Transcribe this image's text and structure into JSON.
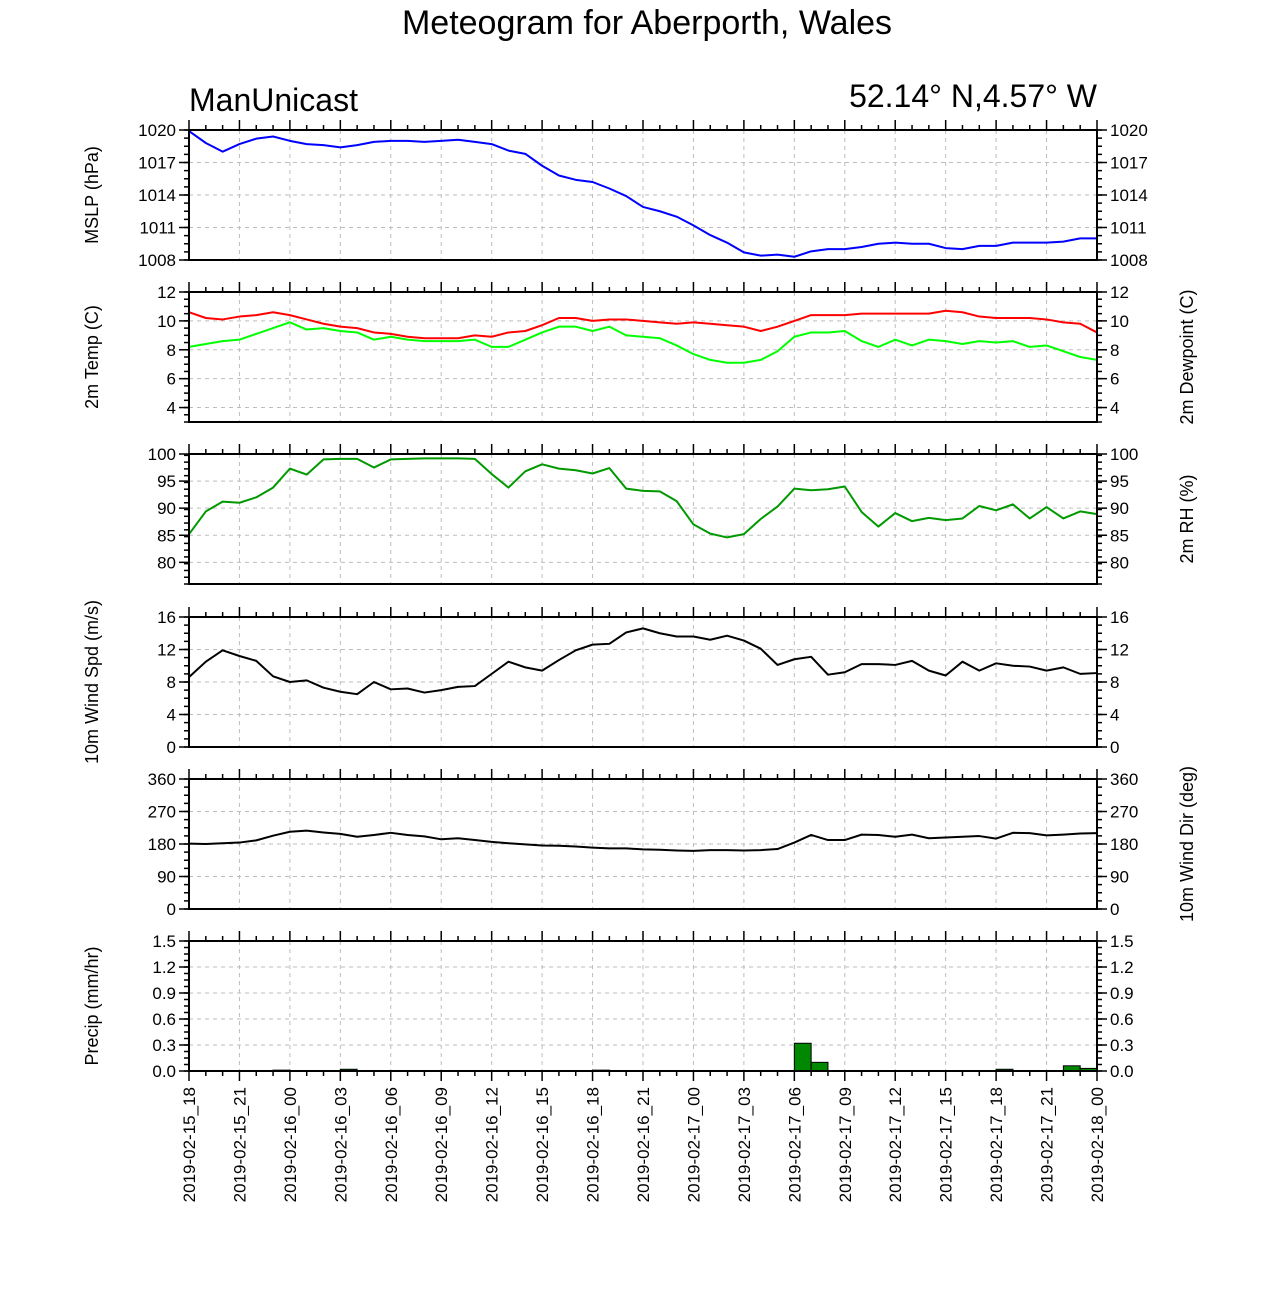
{
  "header": {
    "title": "Meteogram for Aberporth, Wales",
    "model": "ManUnicast",
    "location": "52.14° N,4.57° W"
  },
  "chart_data": {
    "type": "line",
    "time_labels": [
      "2019-02-15_18",
      "2019-02-15_21",
      "2019-02-16_00",
      "2019-02-16_03",
      "2019-02-16_06",
      "2019-02-16_09",
      "2019-02-16_12",
      "2019-02-16_15",
      "2019-02-16_18",
      "2019-02-16_21",
      "2019-02-17_00",
      "2019-02-17_03",
      "2019-02-17_06",
      "2019-02-17_09",
      "2019-02-17_12",
      "2019-02-17_15",
      "2019-02-17_18",
      "2019-02-17_21",
      "2019-02-18_00"
    ],
    "time_step_hours": 1,
    "panels": [
      {
        "id": "mslp",
        "ylabel_left": "MSLP (hPa)",
        "ylabel_right": "",
        "yticks": [
          1008,
          1011,
          1014,
          1017,
          1020
        ],
        "ylim": [
          1008,
          1020
        ],
        "series": [
          {
            "color": "#0000ff",
            "values": [
              1019.9,
              1018.8,
              1018.0,
              1018.7,
              1019.2,
              1019.4,
              1019.0,
              1018.7,
              1018.6,
              1018.4,
              1018.6,
              1018.9,
              1019.0,
              1019.0,
              1018.9,
              1019.0,
              1019.1,
              1018.9,
              1018.7,
              1018.1,
              1017.8,
              1016.7,
              1015.8,
              1015.4,
              1015.2,
              1014.6,
              1013.9,
              1012.9,
              1012.5,
              1012.0,
              1011.2,
              1010.3,
              1009.6,
              1008.7,
              1008.4,
              1008.5,
              1008.3,
              1008.8,
              1009.0,
              1009.0,
              1009.2,
              1009.5,
              1009.6,
              1009.5,
              1009.5,
              1009.1,
              1009.0,
              1009.3,
              1009.3,
              1009.6,
              1009.6,
              1009.6,
              1009.7,
              1010.0,
              1010.0
            ]
          }
        ]
      },
      {
        "id": "temp",
        "ylabel_left": "2m Temp (C)",
        "ylabel_right": "2m Dewpoint (C)",
        "yticks": [
          4,
          6,
          8,
          10,
          12
        ],
        "ylim": [
          3,
          12
        ],
        "series": [
          {
            "color": "#ff0000",
            "values": [
              10.6,
              10.2,
              10.1,
              10.3,
              10.4,
              10.6,
              10.4,
              10.1,
              9.8,
              9.6,
              9.5,
              9.2,
              9.1,
              8.9,
              8.8,
              8.8,
              8.8,
              9.0,
              8.9,
              9.2,
              9.3,
              9.7,
              10.2,
              10.2,
              10.0,
              10.1,
              10.1,
              10.0,
              9.9,
              9.8,
              9.9,
              9.8,
              9.7,
              9.6,
              9.3,
              9.6,
              10.0,
              10.4,
              10.4,
              10.4,
              10.5,
              10.5,
              10.5,
              10.5,
              10.5,
              10.7,
              10.6,
              10.3,
              10.2,
              10.2,
              10.2,
              10.1,
              9.9,
              9.8,
              9.2
            ]
          },
          {
            "color": "#00ff00",
            "values": [
              8.2,
              8.4,
              8.6,
              8.7,
              9.1,
              9.5,
              9.9,
              9.4,
              9.5,
              9.3,
              9.2,
              8.7,
              8.9,
              8.7,
              8.6,
              8.6,
              8.6,
              8.7,
              8.2,
              8.2,
              8.7,
              9.2,
              9.6,
              9.6,
              9.3,
              9.6,
              9.0,
              8.9,
              8.8,
              8.3,
              7.7,
              7.3,
              7.1,
              7.1,
              7.3,
              7.9,
              8.9,
              9.2,
              9.2,
              9.3,
              8.6,
              8.2,
              8.7,
              8.3,
              8.7,
              8.6,
              8.4,
              8.6,
              8.5,
              8.6,
              8.2,
              8.3,
              7.9,
              7.5,
              7.3
            ]
          }
        ]
      },
      {
        "id": "rh",
        "ylabel_left": "",
        "ylabel_right": "2m RH (%)",
        "yticks": [
          80,
          85,
          90,
          95,
          100
        ],
        "ylim": [
          76,
          100
        ],
        "series": [
          {
            "color": "#009900",
            "values": [
              85.2,
              89.4,
              91.2,
              91.0,
              92.0,
              93.8,
              97.3,
              96.2,
              99.0,
              99.1,
              99.1,
              97.5,
              99.0,
              99.1,
              99.2,
              99.2,
              99.2,
              99.1,
              96.3,
              93.8,
              96.8,
              98.1,
              97.3,
              97.0,
              96.4,
              97.4,
              93.6,
              93.2,
              93.1,
              91.3,
              87.0,
              85.3,
              84.6,
              85.2,
              88.0,
              90.3,
              93.6,
              93.3,
              93.5,
              94.0,
              89.3,
              86.6,
              89.1,
              87.6,
              88.2,
              87.8,
              88.1,
              90.4,
              89.6,
              90.7,
              88.1,
              90.2,
              88.1,
              89.4,
              88.9
            ]
          }
        ]
      },
      {
        "id": "wind_spd",
        "ylabel_left": "10m Wind Spd (m/s)",
        "ylabel_right": "",
        "yticks": [
          0,
          4,
          8,
          12,
          16
        ],
        "ylim": [
          0,
          16
        ],
        "series": [
          {
            "color": "#000000",
            "values": [
              8.6,
              10.5,
              11.9,
              11.2,
              10.6,
              8.7,
              8.0,
              8.2,
              7.3,
              6.8,
              6.5,
              8.0,
              7.1,
              7.2,
              6.7,
              7.0,
              7.4,
              7.5,
              9.0,
              10.5,
              9.8,
              9.4,
              10.7,
              11.9,
              12.6,
              12.7,
              14.1,
              14.6,
              14.0,
              13.6,
              13.6,
              13.2,
              13.7,
              13.1,
              12.1,
              10.1,
              10.8,
              11.1,
              8.9,
              9.2,
              10.2,
              10.2,
              10.1,
              10.6,
              9.4,
              8.8,
              10.5,
              9.4,
              10.3,
              10.0,
              9.9,
              9.4,
              9.8,
              9.0,
              9.1
            ]
          }
        ]
      },
      {
        "id": "wind_dir",
        "ylabel_left": "",
        "ylabel_right": "10m Wind Dir (deg)",
        "yticks": [
          0,
          90,
          180,
          270,
          360
        ],
        "ylim": [
          0,
          360
        ],
        "series": [
          {
            "color": "#000000",
            "values": [
              181,
              180,
              182,
              184,
              190,
              203,
              214,
              217,
              212,
              208,
              200,
              205,
              211,
              205,
              201,
              193,
              196,
              191,
              186,
              182,
              179,
              176,
              175,
              173,
              170,
              168,
              168,
              165,
              164,
              162,
              161,
              163,
              163,
              162,
              163,
              166,
              184,
              205,
              191,
              191,
              206,
              205,
              200,
              206,
              196,
              198,
              200,
              202,
              195,
              211,
              210,
              204,
              206,
              209,
              210
            ]
          }
        ]
      },
      {
        "id": "precip",
        "ylabel_left": "Precip (mm/hr)",
        "ylabel_right": "",
        "yticks": [
          "0.0",
          "0.3",
          "0.6",
          "0.9",
          "1.2",
          "1.5"
        ],
        "ylim": [
          0,
          1.5
        ],
        "bar_color": "#008800",
        "bars": [
          {
            "x": 3,
            "value": 0.005
          },
          {
            "x": 5,
            "value": 0.01
          },
          {
            "x": 9,
            "value": 0.02
          },
          {
            "x": 15,
            "value": 0.005
          },
          {
            "x": 24,
            "value": 0.01
          },
          {
            "x": 36,
            "value": 0.32
          },
          {
            "x": 37,
            "value": 0.1
          },
          {
            "x": 44,
            "value": 0.005
          },
          {
            "x": 48,
            "value": 0.02
          },
          {
            "x": 52,
            "value": 0.06
          },
          {
            "x": 53,
            "value": 0.03
          }
        ]
      }
    ]
  }
}
